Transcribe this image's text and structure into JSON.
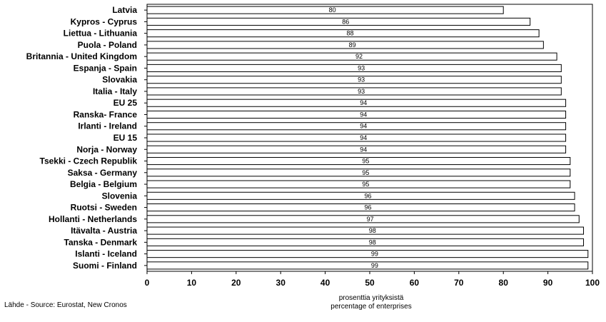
{
  "chart_data": {
    "type": "bar",
    "orientation": "horizontal",
    "categories": [
      "Latvia",
      "Kypros - Cyprus",
      "Liettua - Lithuania",
      "Puola - Poland",
      "Britannia - United Kingdom",
      "Espanja - Spain",
      "Slovakia",
      "Italia - Italy",
      "EU 25",
      "Ranska- France",
      "Irlanti - Ireland",
      "EU 15",
      "Norja - Norway",
      "Tsekki - Czech Republik",
      "Saksa - Germany",
      "Belgia - Belgium",
      "Slovenia",
      "Ruotsi - Sweden",
      "Hollanti - Netherlands",
      "Itävalta - Austria",
      "Tanska - Denmark",
      "Islanti - Iceland",
      "Suomi - Finland"
    ],
    "values": [
      80,
      86,
      88,
      89,
      92,
      93,
      93,
      93,
      94,
      94,
      94,
      94,
      94,
      95,
      95,
      95,
      96,
      96,
      97,
      98,
      98,
      99,
      99
    ],
    "value_labels": [
      "80",
      "86",
      "88",
      "89",
      "92",
      "93",
      "93",
      "93",
      "94",
      "94",
      "94",
      "94",
      "94",
      "95",
      "95",
      "95",
      "96",
      "96",
      "97",
      "98",
      "98",
      "99",
      "99"
    ],
    "xlim": [
      0,
      100
    ],
    "xticks": [
      0,
      10,
      20,
      30,
      40,
      50,
      60,
      70,
      80,
      90,
      100
    ],
    "xlabel_line1": "prosenttia yrityksistä",
    "xlabel_line2": "percentage of enterprises",
    "grid": false,
    "legend": false,
    "bar_color": "#ffffff",
    "edge_color": "#000000"
  },
  "source": "Lähde - Source: Eurostat, New Cronos"
}
